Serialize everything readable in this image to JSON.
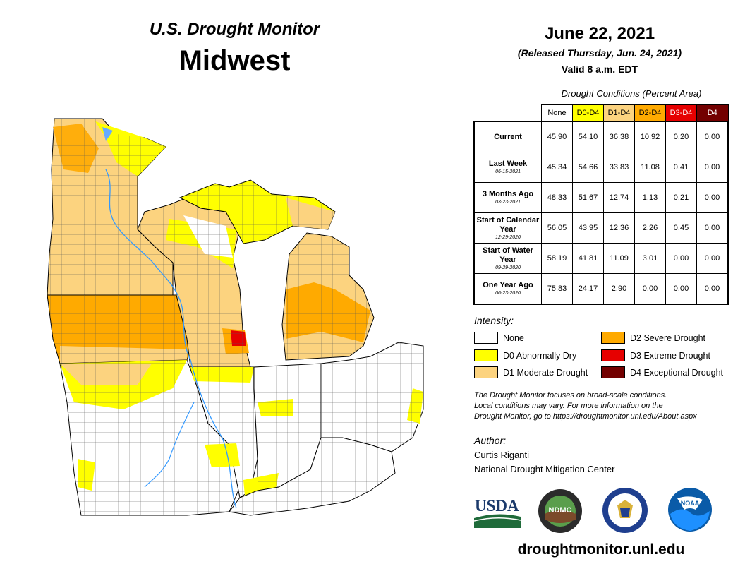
{
  "header": {
    "title_line1": "U.S. Drought Monitor",
    "title_line2": "Midwest",
    "date": "June 22, 2021",
    "released": "(Released Thursday, Jun. 24, 2021)",
    "valid": "Valid 8 a.m. EDT"
  },
  "conditions": {
    "title": "Drought Conditions (Percent Area)",
    "columns": [
      "None",
      "D0-D4",
      "D1-D4",
      "D2-D4",
      "D3-D4",
      "D4"
    ],
    "column_colors": [
      "#ffffff",
      "#ffff00",
      "#fcd37f",
      "#ffaa00",
      "#e60000",
      "#730000"
    ],
    "rows": [
      {
        "label": "Current",
        "sub": "",
        "values": [
          "45.90",
          "54.10",
          "36.38",
          "10.92",
          "0.20",
          "0.00"
        ]
      },
      {
        "label": "Last Week",
        "sub": "06-15-2021",
        "values": [
          "45.34",
          "54.66",
          "33.83",
          "11.08",
          "0.41",
          "0.00"
        ]
      },
      {
        "label": "3 Months Ago",
        "sub": "03-23-2021",
        "values": [
          "48.33",
          "51.67",
          "12.74",
          "1.13",
          "0.21",
          "0.00"
        ]
      },
      {
        "label": "Start of Calendar Year",
        "sub": "12-29-2020",
        "values": [
          "56.05",
          "43.95",
          "12.36",
          "2.26",
          "0.45",
          "0.00"
        ]
      },
      {
        "label": "Start of Water Year",
        "sub": "09-29-2020",
        "values": [
          "58.19",
          "41.81",
          "11.09",
          "3.01",
          "0.00",
          "0.00"
        ]
      },
      {
        "label": "One Year Ago",
        "sub": "06-23-2020",
        "values": [
          "75.83",
          "24.17",
          "2.90",
          "0.00",
          "0.00",
          "0.00"
        ]
      }
    ]
  },
  "legend": {
    "title": "Intensity:",
    "items": [
      {
        "label": "None",
        "color": "#ffffff"
      },
      {
        "label": "D0 Abnormally Dry",
        "color": "#ffff00"
      },
      {
        "label": "D1 Moderate Drought",
        "color": "#fcd37f"
      },
      {
        "label": "D2 Severe Drought",
        "color": "#ffaa00"
      },
      {
        "label": "D3 Extreme Drought",
        "color": "#e60000"
      },
      {
        "label": "D4 Exceptional Drought",
        "color": "#730000"
      }
    ]
  },
  "note": {
    "line1": "The Drought Monitor focuses on broad-scale conditions.",
    "line2": "Local conditions may vary. For more information on the",
    "line3": "Drought Monitor, go to https://droughtmonitor.unl.edu/About.aspx"
  },
  "author": {
    "heading": "Author:",
    "name": "Curtis Riganti",
    "org": "National Drought Mitigation Center"
  },
  "logos": {
    "usda": "USDA",
    "ndmc": "NDMC",
    "noaa": "NOAA"
  },
  "footer": {
    "site": "droughtmonitor.unl.edu"
  }
}
